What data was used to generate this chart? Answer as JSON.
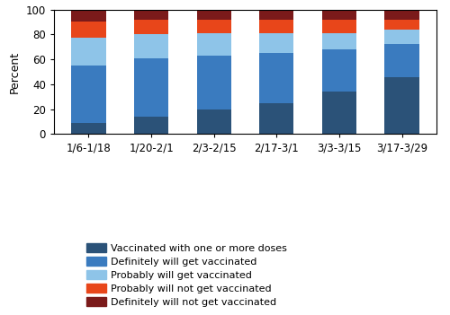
{
  "categories": [
    "1/6-1/18",
    "1/20-2/1",
    "2/3-2/15",
    "2/17-3/1",
    "3/3-3/15",
    "3/17-3/29"
  ],
  "series": {
    "Vaccinated with one or more doses": [
      9,
      14,
      20,
      25,
      34,
      46
    ],
    "Definitely will get vaccinated": [
      46,
      47,
      43,
      40,
      34,
      26
    ],
    "Probably will get vaccinated": [
      22,
      19,
      18,
      16,
      13,
      12
    ],
    "Probably will not get vaccinated": [
      13,
      12,
      11,
      11,
      11,
      8
    ],
    "Definitely will not get vaccinated": [
      10,
      8,
      8,
      8,
      8,
      8
    ]
  },
  "colors": {
    "Vaccinated with one or more doses": "#2b5278",
    "Definitely will get vaccinated": "#3a7bbf",
    "Probably will get vaccinated": "#8ec4e8",
    "Probably will not get vaccinated": "#e8461a",
    "Definitely will not get vaccinated": "#7b1a1a"
  },
  "ylabel": "Percent",
  "ylim": [
    0,
    100
  ],
  "yticks": [
    0,
    20,
    40,
    60,
    80,
    100
  ],
  "bar_width": 0.55,
  "legend_order": [
    "Vaccinated with one or more doses",
    "Definitely will get vaccinated",
    "Probably will get vaccinated",
    "Probably will not get vaccinated",
    "Definitely will not get vaccinated"
  ],
  "legend_fontsize": 8.0,
  "axis_fontsize": 8.5,
  "ylabel_fontsize": 9.0
}
